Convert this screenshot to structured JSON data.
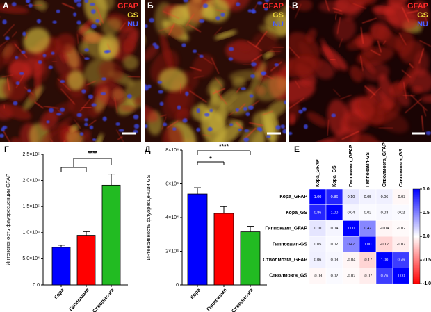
{
  "images": [
    {
      "label": "A",
      "stains": [
        {
          "name": "GFAP",
          "color": "#ff2a2a"
        },
        {
          "name": "GS",
          "color": "#e8d23a"
        },
        {
          "name": "NU",
          "color": "#4a5cff"
        }
      ]
    },
    {
      "label": "Б",
      "stains": [
        {
          "name": "GFAP",
          "color": "#ff2a2a"
        },
        {
          "name": "GS",
          "color": "#e8d23a"
        },
        {
          "name": "NU",
          "color": "#4a5cff"
        }
      ]
    },
    {
      "label": "В",
      "stains": [
        {
          "name": "GFAP",
          "color": "#ff2a2a"
        },
        {
          "name": "GS",
          "color": "#e8d23a"
        },
        {
          "name": "NU",
          "color": "#4a5cff"
        }
      ]
    }
  ],
  "chart_data": [
    {
      "type": "bar",
      "panel": "Г",
      "y_label": "Интенсивность флуоресценции GFAP",
      "categories": [
        "Кора",
        "Гиппокамп",
        "Стволмозга"
      ],
      "values": [
        72000,
        95000,
        191000
      ],
      "errors": [
        4000,
        7000,
        21000
      ],
      "colors": [
        "#0000ff",
        "#ff0000",
        "#22bb22"
      ],
      "ylim": [
        0,
        250000
      ],
      "yticks": [
        {
          "value": 0,
          "label": "0.0"
        },
        {
          "value": 50000,
          "label": "5.0×10⁴"
        },
        {
          "value": 100000,
          "label": "1.0×10⁵"
        },
        {
          "value": 150000,
          "label": "1.5×10⁵"
        },
        {
          "value": 200000,
          "label": "2.0×10⁵"
        },
        {
          "value": 250000,
          "label": "2.5×10⁵"
        }
      ],
      "annotations": [
        "****"
      ]
    },
    {
      "type": "bar",
      "panel": "Д",
      "y_label": "Интенсивность флуоресценции GS",
      "categories": [
        "Кора",
        "Гиппокамп",
        "Стволмозга"
      ],
      "values": [
        54000,
        42500,
        31500
      ],
      "errors": [
        3700,
        4000,
        3300
      ],
      "colors": [
        "#0000ff",
        "#ff0000",
        "#22bb22"
      ],
      "ylim": [
        0,
        80000
      ],
      "yticks": [
        0,
        {
          "value": 20000,
          "label": "2×10⁴"
        },
        {
          "value": 40000,
          "label": "4×10⁴"
        },
        {
          "value": 60000,
          "label": "6×10⁴"
        },
        {
          "value": 80000,
          "label": "8×10⁴"
        }
      ],
      "annotations": [
        "*",
        "****"
      ]
    },
    {
      "type": "heatmap",
      "panel": "Е",
      "labels": [
        "Кора_GFAP",
        "Кора_GS",
        "Гиппокамп_GFAP",
        "Гиппокамп-GS",
        "Стволмозга_GFAP",
        "Стволмозга_GS"
      ],
      "values": [
        [
          1,
          0.86,
          0.1,
          0.05,
          0.06,
          -0.03
        ],
        [
          0.86,
          1,
          0.04,
          0.02,
          0.03,
          0.02
        ],
        [
          0.1,
          0.04,
          1,
          0.47,
          -0.04,
          -0.02
        ],
        [
          0.05,
          0.02,
          0.47,
          1,
          -0.17,
          -0.07
        ],
        [
          0.06,
          0.03,
          -0.04,
          -0.17,
          1,
          0.76
        ],
        [
          -0.03,
          0.02,
          -0.02,
          -0.07,
          0.76,
          1
        ]
      ],
      "value_labels": [
        [
          "1.00",
          "0.86",
          "0.10",
          "0.05",
          "0.06",
          "-0.03"
        ],
        [
          "0.86",
          "1.00",
          "0.04",
          "0.02",
          "0.03",
          "0.02"
        ],
        [
          "0.10",
          "0.04",
          "1.00",
          "0.47",
          "-0.04",
          "-0.02"
        ],
        [
          "0.05",
          "0.02",
          "0.47",
          "1.00",
          "-0.17",
          "-0.07"
        ],
        [
          "0.06",
          "0.03",
          "-0.04",
          "-0.17",
          "1.00",
          "0.76"
        ],
        [
          "-0.03",
          "0.02",
          "-0.02",
          "-0.07",
          "0.76",
          "1.00"
        ]
      ],
      "clim": [
        -1,
        1
      ],
      "colors": [
        "#ff0000",
        "#ffffff",
        "#0000ff"
      ],
      "colorbar_ticks": [
        {
          "value": 1,
          "label": "1.0"
        },
        {
          "value": 0.5,
          "label": "0.5"
        },
        {
          "value": 0,
          "label": "0.0"
        },
        {
          "value": -0.5,
          "label": "-0.5"
        },
        {
          "value": -1,
          "label": "-1.0"
        }
      ]
    }
  ]
}
